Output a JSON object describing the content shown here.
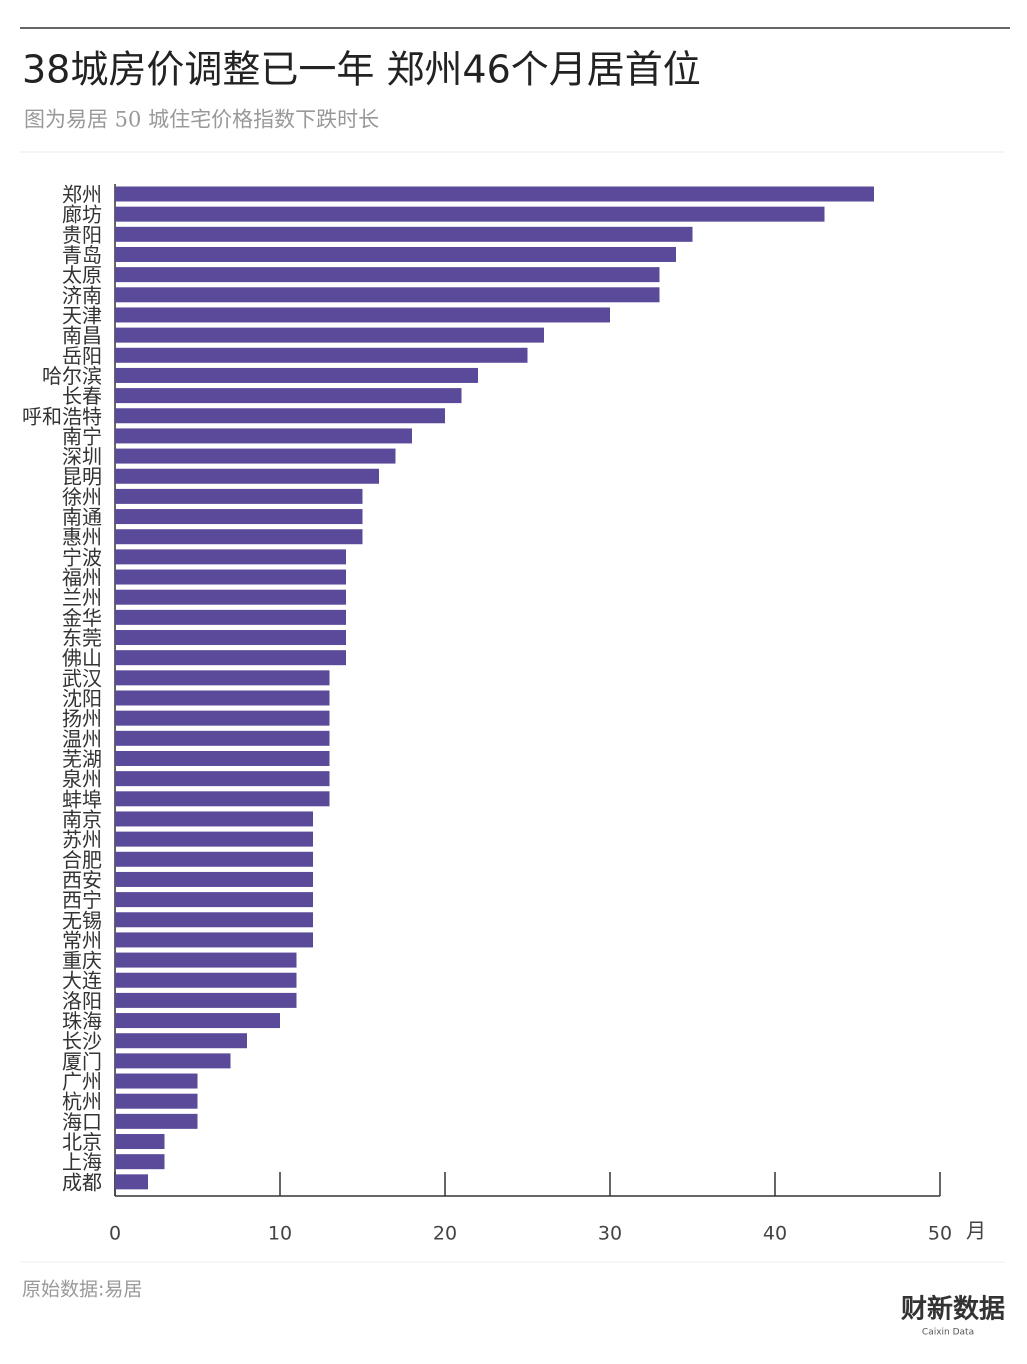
{
  "chart_data": {
    "type": "bar",
    "orientation": "horizontal",
    "title": "38城房价调整已一年 郑州46个月居首位",
    "subtitle": "图为易居 50 城住宅价格指数下跌时长",
    "categories": [
      "郑州",
      "廊坊",
      "贵阳",
      "青岛",
      "太原",
      "济南",
      "天津",
      "南昌",
      "岳阳",
      "哈尔滨",
      "长春",
      "呼和浩特",
      "南宁",
      "深圳",
      "昆明",
      "徐州",
      "南通",
      "惠州",
      "宁波",
      "福州",
      "兰州",
      "金华",
      "东莞",
      "佛山",
      "武汉",
      "沈阳",
      "扬州",
      "温州",
      "芜湖",
      "泉州",
      "蚌埠",
      "南京",
      "苏州",
      "合肥",
      "西安",
      "西宁",
      "无锡",
      "常州",
      "重庆",
      "大连",
      "洛阳",
      "珠海",
      "长沙",
      "厦门",
      "广州",
      "杭州",
      "海口",
      "北京",
      "上海",
      "成都"
    ],
    "values": [
      46,
      43,
      35,
      34,
      33,
      33,
      30,
      26,
      25,
      22,
      21,
      20,
      18,
      17,
      16,
      15,
      15,
      15,
      14,
      14,
      14,
      14,
      14,
      14,
      13,
      13,
      13,
      13,
      13,
      13,
      13,
      12,
      12,
      12,
      12,
      12,
      12,
      12,
      11,
      11,
      11,
      10,
      8,
      7,
      5,
      5,
      5,
      3,
      3,
      2
    ],
    "color": "#5b4a9a",
    "xlim": [
      0,
      50
    ],
    "xticks": [
      0,
      10,
      20,
      30,
      40,
      50
    ],
    "x_label": "月",
    "source": "原始数据:易居",
    "logo": "财新数据",
    "logo_sub": "Caixin Data"
  }
}
